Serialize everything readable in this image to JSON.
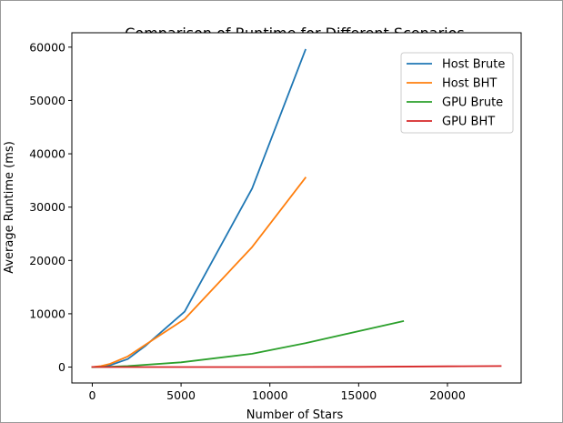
{
  "chart_data": {
    "type": "line",
    "title": "Comparison of Runtime for Different Scenarios",
    "xlabel": "Number of Stars",
    "ylabel": "Average Runtime (ms)",
    "xlim": [
      -1150,
      24150
    ],
    "ylim": [
      -2980,
      62700
    ],
    "xticks": [
      0,
      5000,
      10000,
      15000,
      20000
    ],
    "yticks": [
      0,
      10000,
      20000,
      30000,
      40000,
      50000,
      60000
    ],
    "grid": false,
    "legend_position": "top-right",
    "series": [
      {
        "name": "Host Brute",
        "color": "#1f77b4",
        "x": [
          0,
          500,
          1000,
          2000,
          3000,
          5200,
          9000,
          12000
        ],
        "y": [
          0,
          100,
          350,
          1500,
          4000,
          10400,
          33500,
          59500
        ]
      },
      {
        "name": "Host BHT",
        "color": "#ff7f0e",
        "x": [
          0,
          500,
          1000,
          2000,
          3000,
          5200,
          9000,
          12000
        ],
        "y": [
          0,
          200,
          600,
          2000,
          4200,
          9000,
          22500,
          35500
        ]
      },
      {
        "name": "GPU Brute",
        "color": "#2ca02c",
        "x": [
          0,
          1000,
          2000,
          5000,
          9000,
          12000,
          17500
        ],
        "y": [
          0,
          60,
          200,
          900,
          2500,
          4500,
          8600
        ]
      },
      {
        "name": "GPU BHT",
        "color": "#d62728",
        "x": [
          0,
          1000,
          5000,
          10000,
          15000,
          20000,
          23000
        ],
        "y": [
          30,
          0,
          0,
          10,
          40,
          150,
          200
        ]
      }
    ]
  }
}
